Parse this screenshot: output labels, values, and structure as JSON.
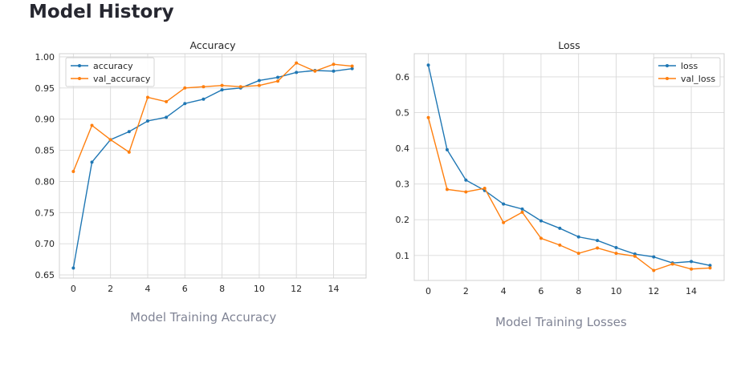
{
  "page": {
    "title": "Model History"
  },
  "captions": {
    "accuracy": "Model Training Accuracy",
    "loss": "Model Training Losses"
  },
  "colors": {
    "blue": "#1f77b4",
    "orange": "#ff7f0e"
  },
  "chart_data": [
    {
      "type": "line",
      "title": "Accuracy",
      "xlabel": "",
      "ylabel": "",
      "grid": true,
      "legend_position": "top-left",
      "xlim": [
        -0.75,
        15.75
      ],
      "ylim": [
        0.645,
        1.005
      ],
      "xticks": [
        0,
        2,
        4,
        6,
        8,
        10,
        12,
        14
      ],
      "yticks": [
        0.65,
        0.7,
        0.75,
        0.8,
        0.85,
        0.9,
        0.95,
        1.0
      ],
      "ytick_labels": [
        "0.65",
        "0.70",
        "0.75",
        "0.80",
        "0.85",
        "0.90",
        "0.95",
        "1.00"
      ],
      "x": [
        0,
        1,
        2,
        3,
        4,
        5,
        6,
        7,
        8,
        9,
        10,
        11,
        12,
        13,
        14,
        15
      ],
      "series": [
        {
          "name": "accuracy",
          "color": "#1f77b4",
          "values": [
            0.661,
            0.831,
            0.867,
            0.88,
            0.897,
            0.903,
            0.925,
            0.932,
            0.947,
            0.95,
            0.962,
            0.967,
            0.975,
            0.978,
            0.977,
            0.981
          ]
        },
        {
          "name": "val_accuracy",
          "color": "#ff7f0e",
          "values": [
            0.816,
            0.89,
            0.867,
            0.847,
            0.935,
            0.928,
            0.95,
            0.952,
            0.954,
            0.952,
            0.954,
            0.961,
            0.99,
            0.977,
            0.988,
            0.985
          ]
        }
      ]
    },
    {
      "type": "line",
      "title": "Loss",
      "xlabel": "",
      "ylabel": "",
      "grid": true,
      "legend_position": "top-right",
      "xlim": [
        -0.75,
        15.75
      ],
      "ylim": [
        0.03,
        0.665
      ],
      "xticks": [
        0,
        2,
        4,
        6,
        8,
        10,
        12,
        14
      ],
      "yticks": [
        0.1,
        0.2,
        0.3,
        0.4,
        0.5,
        0.6
      ],
      "ytick_labels": [
        "0.1",
        "0.2",
        "0.3",
        "0.4",
        "0.5",
        "0.6"
      ],
      "x": [
        0,
        1,
        2,
        3,
        4,
        5,
        6,
        7,
        8,
        9,
        10,
        11,
        12,
        13,
        14,
        15
      ],
      "series": [
        {
          "name": "loss",
          "color": "#1f77b4",
          "values": [
            0.633,
            0.396,
            0.311,
            0.282,
            0.244,
            0.23,
            0.197,
            0.176,
            0.152,
            0.142,
            0.122,
            0.104,
            0.096,
            0.079,
            0.083,
            0.072
          ]
        },
        {
          "name": "val_loss",
          "color": "#ff7f0e",
          "values": [
            0.486,
            0.285,
            0.278,
            0.288,
            0.192,
            0.221,
            0.148,
            0.129,
            0.106,
            0.121,
            0.106,
            0.098,
            0.058,
            0.076,
            0.062,
            0.065
          ]
        }
      ]
    }
  ]
}
